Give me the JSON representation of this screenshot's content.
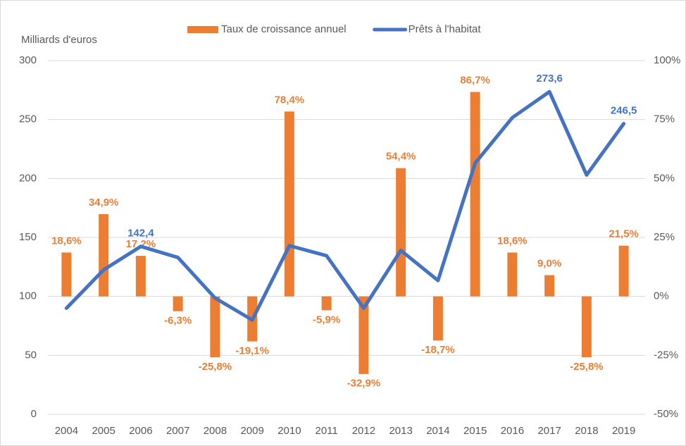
{
  "chart_data": {
    "type": "bar_line",
    "y_label": "Milliards d'euros",
    "categories": [
      "2004",
      "2005",
      "2006",
      "2007",
      "2008",
      "2009",
      "2010",
      "2011",
      "2012",
      "2013",
      "2014",
      "2015",
      "2016",
      "2017",
      "2018",
      "2019"
    ],
    "series": [
      {
        "name": "Taux de croissance annuel",
        "type": "bar",
        "axis": "y2",
        "color": "#ed7d31",
        "values": [
          18.6,
          34.9,
          17.2,
          -6.3,
          -25.8,
          -19.1,
          78.4,
          -5.9,
          -32.9,
          54.4,
          -18.7,
          86.7,
          18.6,
          9.0,
          -25.8,
          21.5
        ],
        "value_labels": [
          "18,6%",
          "34,9%",
          "17,2%",
          "-6,3%",
          "-25,8%",
          "-19,1%",
          "78,4%",
          "-5,9%",
          "-32,9%",
          "54,4%",
          "-18,7%",
          "86,7%",
          "18,6%",
          "9,0%",
          "-25,8%",
          "21,5%"
        ]
      },
      {
        "name": "Prêts à l'habitat",
        "type": "line",
        "axis": "y",
        "color": "#4472c4",
        "values": [
          90,
          122.5,
          142.4,
          133,
          98.6,
          80,
          143,
          134.5,
          90,
          139,
          113.5,
          213,
          251.6,
          273.6,
          203,
          246.5
        ],
        "value_labels": [
          null,
          null,
          "142,4",
          null,
          null,
          null,
          null,
          null,
          null,
          null,
          null,
          null,
          null,
          "273,6",
          null,
          "246,5"
        ]
      }
    ],
    "ylim": [
      0,
      300
    ],
    "yticks": [
      0,
      50,
      100,
      150,
      200,
      250,
      300
    ],
    "y2lim": [
      -50,
      100
    ],
    "y2ticks": [
      {
        "value": -50,
        "label": "-50%"
      },
      {
        "value": -25,
        "label": "-25%"
      },
      {
        "value": 0,
        "label": "0%"
      },
      {
        "value": 25,
        "label": "25%"
      },
      {
        "value": 50,
        "label": "50%"
      },
      {
        "value": 75,
        "label": "75%"
      },
      {
        "value": 100,
        "label": "100%"
      }
    ],
    "grid": true,
    "legend": "top"
  }
}
